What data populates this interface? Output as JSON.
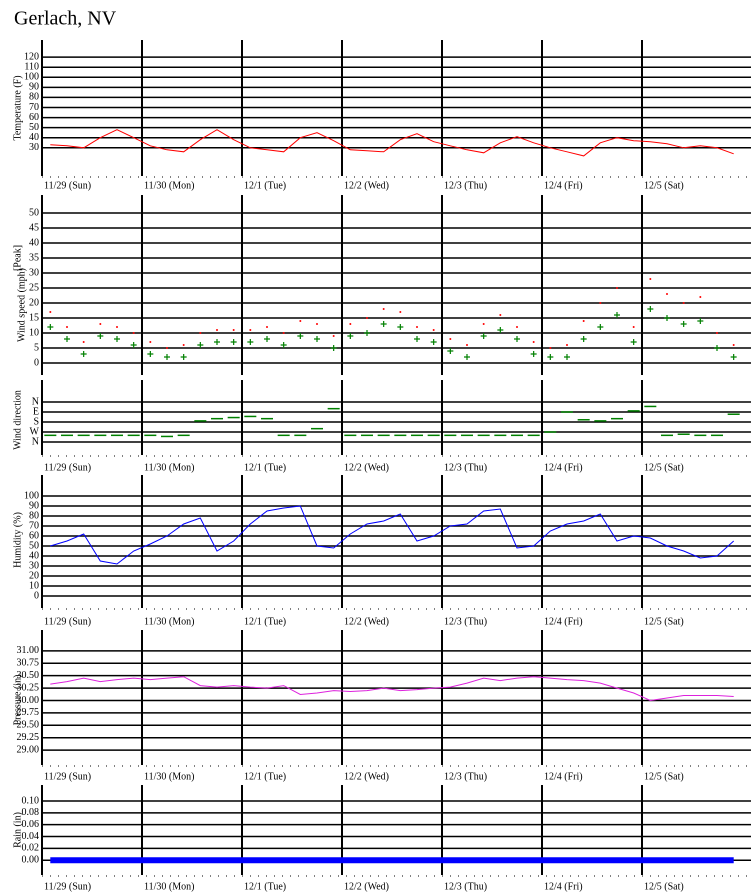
{
  "title": "Gerlach, NV",
  "chart_data": [
    {
      "type": "line",
      "ylabel": "Temperature (F)",
      "categories": [
        "11/29 (Sun)",
        "11/30 (Mon)",
        "12/1 (Tue)",
        "12/2 (Wed)",
        "12/3 (Thu)",
        "12/4 (Fri)",
        "12/5 (Sat)"
      ],
      "ylim": [
        2,
        137
      ],
      "yticks": [
        30,
        40,
        50,
        60,
        70,
        80,
        90,
        100,
        110,
        120
      ],
      "grid": true,
      "series": [
        {
          "color": "#ff0000",
          "values": [
            [
              33,
              32,
              30,
              40,
              48,
              40
            ],
            [
              32,
              28,
              26,
              38,
              48,
              38
            ],
            [
              30,
              28,
              26,
              40,
              45,
              37
            ],
            [
              28,
              27,
              26,
              38,
              44,
              36
            ],
            [
              32,
              28,
              25,
              35,
              41,
              35
            ],
            [
              30,
              26,
              22,
              35,
              40,
              37
            ],
            [
              36,
              34,
              30,
              32,
              30,
              24
            ]
          ]
        }
      ]
    },
    {
      "type": "scatter",
      "ylabel": "Wind speed (mph)",
      "ylim": [
        -4,
        56
      ],
      "yticks": [
        0,
        5,
        10,
        15,
        20,
        25,
        30,
        35,
        40,
        45,
        50
      ],
      "grid": true,
      "series": [
        {
          "name": "[Peak]",
          "color": "#ff0000",
          "marker": "dot",
          "values": [
            [
              17,
              12,
              7,
              13,
              12,
              10
            ],
            [
              7,
              5,
              6,
              10,
              11,
              11
            ],
            [
              11,
              12,
              10,
              14,
              13,
              9
            ],
            [
              13,
              15,
              18,
              17,
              12,
              11
            ],
            [
              8,
              6,
              13,
              16,
              12,
              7
            ],
            [
              5,
              6,
              14,
              20,
              25,
              12
            ],
            [
              28,
              23,
              20,
              22,
              10,
              6
            ]
          ]
        },
        {
          "color": "#008000",
          "marker": "plus",
          "values": [
            [
              12,
              8,
              3,
              9,
              8,
              6
            ],
            [
              3,
              2,
              2,
              6,
              7,
              7
            ],
            [
              7,
              8,
              6,
              9,
              8,
              5
            ],
            [
              9,
              10,
              13,
              12,
              8,
              7
            ],
            [
              4,
              2,
              9,
              11,
              8,
              3
            ],
            [
              2,
              2,
              8,
              12,
              16,
              7
            ],
            [
              18,
              15,
              13,
              14,
              5,
              2
            ]
          ]
        }
      ]
    },
    {
      "type": "scatter",
      "ylabel": "Wind direction",
      "categories": [
        "11/29 (Sun)",
        "11/30 (Mon)",
        "12/1 (Tue)",
        "12/2 (Wed)",
        "12/3 (Thu)",
        "12/4 (Fri)",
        "12/5 (Sat)"
      ],
      "ylim": [
        477,
        -198
      ],
      "yticks": [
        {
          "value": 0,
          "label": "N"
        },
        {
          "value": 90,
          "label": "E"
        },
        {
          "value": 180,
          "label": "S"
        },
        {
          "value": 270,
          "label": "W"
        },
        {
          "value": 360,
          "label": "N"
        }
      ],
      "grid": true,
      "series": [
        {
          "color": "#008000",
          "marker": "dash",
          "values": [
            [
              300,
              300,
              300,
              300,
              300,
              300
            ],
            [
              300,
              310,
              300,
              170,
              150,
              140
            ],
            [
              130,
              150,
              300,
              300,
              240,
              60
            ],
            [
              300,
              300,
              300,
              300,
              300,
              300
            ],
            [
              300,
              300,
              300,
              300,
              300,
              300
            ],
            [
              270,
              90,
              160,
              170,
              150,
              80
            ],
            [
              40,
              300,
              290,
              300,
              300,
              110
            ]
          ]
        }
      ]
    },
    {
      "type": "line",
      "ylabel": "Humidity (%)",
      "categories": [
        "11/29 (Sun)",
        "11/30 (Mon)",
        "12/1 (Tue)",
        "12/2 (Wed)",
        "12/3 (Thu)",
        "12/4 (Fri)",
        "12/5 (Sat)"
      ],
      "ylim": [
        -12,
        121
      ],
      "yticks": [
        0,
        10,
        20,
        30,
        40,
        50,
        60,
        70,
        80,
        90,
        100
      ],
      "grid": true,
      "series": [
        {
          "color": "#0000ff",
          "values": [
            [
              50,
              55,
              62,
              35,
              32,
              45
            ],
            [
              52,
              60,
              72,
              78,
              45,
              55
            ],
            [
              72,
              85,
              88,
              90,
              50,
              48
            ],
            [
              62,
              72,
              75,
              82,
              55,
              60
            ],
            [
              70,
              72,
              85,
              87,
              48,
              50
            ],
            [
              65,
              72,
              75,
              82,
              55,
              60
            ],
            [
              58,
              50,
              45,
              38,
              40,
              55
            ]
          ]
        }
      ]
    },
    {
      "type": "line",
      "ylabel": "Pressure (in)",
      "categories": [
        "11/29 (Sun)",
        "11/30 (Mon)",
        "12/1 (Tue)",
        "12/2 (Wed)",
        "12/3 (Thu)",
        "12/4 (Fri)",
        "12/5 (Sat)"
      ],
      "ylim": [
        28.7,
        31.42
      ],
      "yticks": [
        {
          "value": 29,
          "label": "29.00"
        },
        {
          "value": 29.25,
          "label": "29.25"
        },
        {
          "value": 29.5,
          "label": "29.50"
        },
        {
          "value": 29.75,
          "label": "29.75"
        },
        {
          "value": 30,
          "label": "30.00"
        },
        {
          "value": 30.25,
          "label": "30.25"
        },
        {
          "value": 30.5,
          "label": "30.50"
        },
        {
          "value": 30.75,
          "label": "30.75"
        },
        {
          "value": 31,
          "label": "31.00"
        }
      ],
      "grid": true,
      "series": [
        {
          "color": "#dd22dd",
          "values": [
            [
              30.33,
              30.38,
              30.45,
              30.38,
              30.42,
              30.45
            ],
            [
              30.42,
              30.45,
              30.48,
              30.3,
              30.27,
              30.3
            ],
            [
              30.27,
              30.25,
              30.3,
              30.12,
              30.15,
              30.2
            ],
            [
              30.18,
              30.2,
              30.25,
              30.2,
              30.22,
              30.25
            ],
            [
              30.27,
              30.35,
              30.45,
              30.4,
              30.45,
              30.48
            ],
            [
              30.45,
              30.42,
              30.4,
              30.35,
              30.25,
              30.15
            ],
            [
              30.0,
              30.05,
              30.1,
              30.1,
              30.1,
              30.08
            ]
          ]
        }
      ]
    },
    {
      "type": "line",
      "ylabel": "Rain (in)",
      "categories": [
        "11/29 (Sun)",
        "11/30 (Mon)",
        "12/1 (Tue)",
        "12/2 (Wed)",
        "12/3 (Thu)",
        "12/4 (Fri)",
        "12/5 (Sat)"
      ],
      "ylim": [
        -0.025,
        0.127
      ],
      "yticks": [
        {
          "value": 0,
          "label": "0.00"
        },
        {
          "value": 0.02,
          "label": "0.02"
        },
        {
          "value": 0.04,
          "label": "0.04"
        },
        {
          "value": 0.06,
          "label": "0.06"
        },
        {
          "value": 0.08,
          "label": "0.08"
        },
        {
          "value": 0.1,
          "label": "0.10"
        }
      ],
      "grid": true,
      "series": [
        {
          "color": "#0000ff",
          "values": [
            [
              0,
              0,
              0,
              0,
              0,
              0
            ],
            [
              0,
              0,
              0,
              0,
              0,
              0
            ],
            [
              0,
              0,
              0,
              0,
              0,
              0
            ],
            [
              0,
              0,
              0,
              0,
              0,
              0
            ],
            [
              0,
              0,
              0,
              0,
              0,
              0
            ],
            [
              0,
              0,
              0,
              0,
              0,
              0
            ],
            [
              0,
              0,
              0,
              0,
              0,
              0
            ]
          ]
        }
      ]
    }
  ]
}
